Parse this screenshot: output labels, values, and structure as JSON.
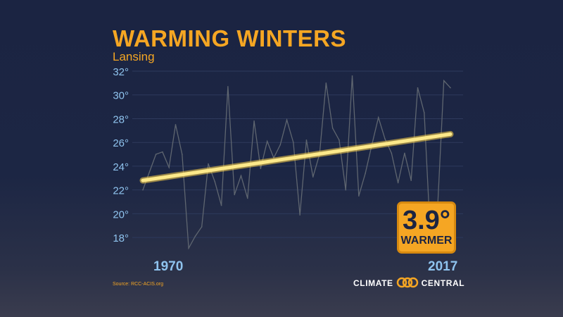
{
  "header": {
    "title": "WARMING WINTERS",
    "subtitle": "Lansing"
  },
  "badge": {
    "value": "3.9°",
    "label": "WARMER"
  },
  "footer": {
    "source": "Source: RCC-ACIS.org",
    "logo_left": "CLIMATE",
    "logo_right": "CENTRAL",
    "logo_icon": "climate-central-rings-icon"
  },
  "colors": {
    "accent": "#f5a623",
    "trend": "#fde98a",
    "tick": "#8fc3ee",
    "series": "#5f6670"
  },
  "chart_data": {
    "type": "line",
    "title": "WARMING WINTERS",
    "subtitle": "Lansing",
    "xlabel": "",
    "ylabel": "",
    "xlim": [
      1970,
      2017
    ],
    "ylim": [
      17,
      32
    ],
    "x_tick_labels": [
      "1970",
      "2017"
    ],
    "y_tick_labels": [
      "18°",
      "20°",
      "22°",
      "24°",
      "26°",
      "28°",
      "30°",
      "32°"
    ],
    "y_ticks": [
      18,
      20,
      22,
      24,
      26,
      28,
      30,
      32
    ],
    "grid": true,
    "x": [
      1970,
      1971,
      1972,
      1973,
      1974,
      1975,
      1976,
      1977,
      1978,
      1979,
      1980,
      1981,
      1982,
      1983,
      1984,
      1985,
      1986,
      1987,
      1988,
      1989,
      1990,
      1991,
      1992,
      1993,
      1994,
      1995,
      1996,
      1997,
      1998,
      1999,
      2000,
      2001,
      2002,
      2003,
      2004,
      2005,
      2006,
      2007,
      2008,
      2009,
      2010,
      2011,
      2012,
      2013,
      2014,
      2015,
      2016,
      2017
    ],
    "series": [
      {
        "values": [
          22.0,
          23.5,
          25.0,
          25.2,
          23.9,
          27.5,
          25.0,
          17.1,
          18.1,
          18.9,
          24.2,
          22.7,
          20.7,
          30.7,
          21.6,
          23.2,
          21.3,
          27.8,
          23.8,
          26.1,
          24.7,
          25.8,
          27.9,
          26.0,
          19.9,
          26.2,
          23.1,
          25.0,
          31.0,
          27.2,
          26.2,
          22.0,
          31.6,
          21.5,
          23.4,
          25.8,
          28.1,
          26.3,
          25.1,
          22.6,
          25.1,
          22.8,
          30.6,
          28.5,
          17.5,
          20.0,
          31.2,
          30.6
        ]
      }
    ],
    "trendline": {
      "start": [
        1970,
        22.8
      ],
      "end": [
        2017,
        26.7
      ]
    },
    "annotation": "3.9° WARMER"
  }
}
